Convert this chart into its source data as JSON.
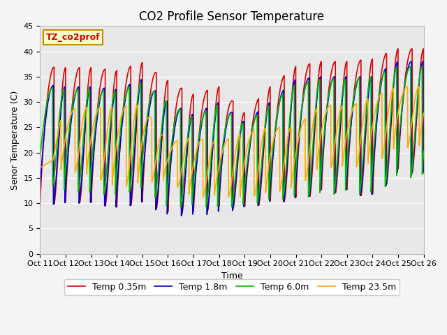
{
  "title": "CO2 Profile Sensor Temperature",
  "ylabel": "Senor Temperature (C)",
  "xlabel": "Time",
  "xlim": [
    0,
    15
  ],
  "ylim": [
    0,
    45
  ],
  "yticks": [
    0,
    5,
    10,
    15,
    20,
    25,
    30,
    35,
    40,
    45
  ],
  "xtick_labels": [
    "Oct 11",
    "Oct 12",
    "Oct 13",
    "Oct 14",
    "Oct 15",
    "Oct 16",
    "Oct 17",
    "Oct 18",
    "Oct 19",
    "Oct 20",
    "Oct 21",
    "Oct 22",
    "Oct 23",
    "Oct 24",
    "Oct 25",
    "Oct 26"
  ],
  "xtick_positions": [
    0,
    1,
    2,
    3,
    4,
    5,
    6,
    7,
    8,
    9,
    10,
    11,
    12,
    13,
    14,
    15
  ],
  "annotation_text": "TZ_co2prof",
  "annotation_color": "#cc0000",
  "annotation_bg": "#ffffcc",
  "annotation_border": "#cc8800",
  "lines": [
    {
      "label": "Temp 0.35m",
      "color": "#dd0000",
      "lw": 1.2
    },
    {
      "label": "Temp 1.8m",
      "color": "#0000cc",
      "lw": 1.2
    },
    {
      "label": "Temp 6.0m",
      "color": "#00bb00",
      "lw": 1.2
    },
    {
      "label": "Temp 23.5m",
      "color": "#ffaa00",
      "lw": 1.2
    }
  ],
  "plot_bg": "#e8e8e8",
  "fig_bg": "#f5f5f5",
  "title_fontsize": 12,
  "axis_fontsize": 9,
  "tick_fontsize": 8,
  "legend_fontsize": 9
}
